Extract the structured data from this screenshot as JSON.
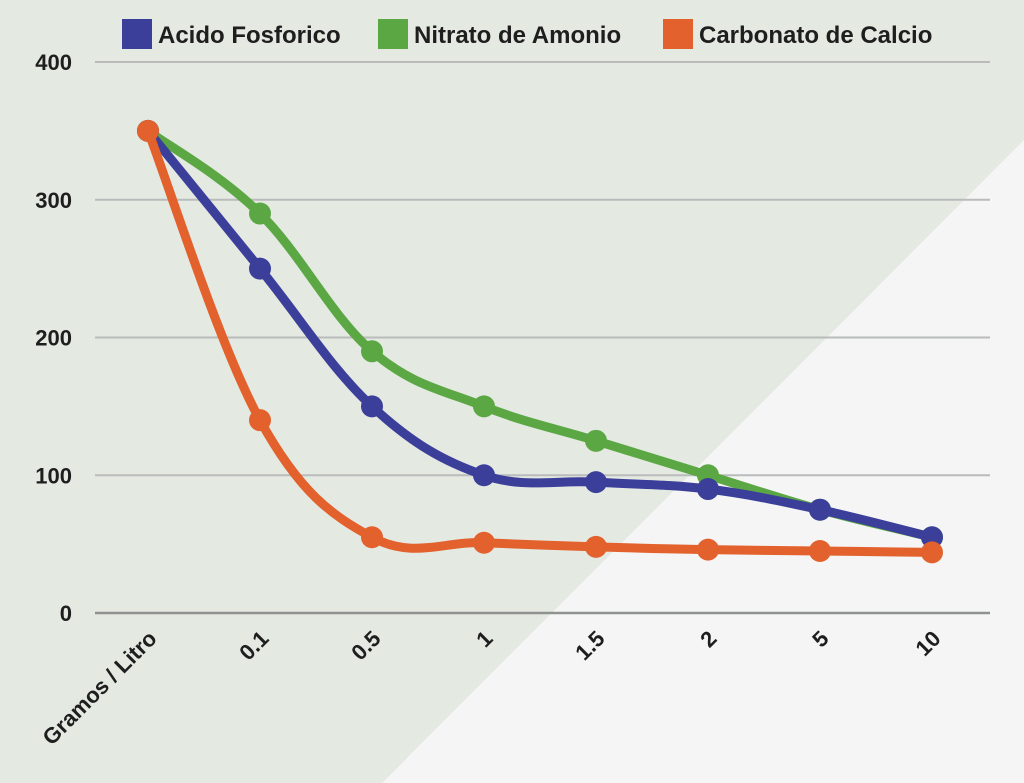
{
  "chart_data": {
    "type": "line",
    "title": "",
    "xlabel": "",
    "ylabel": "",
    "categories": [
      "Gramos / Litro",
      "0.1",
      "0.5",
      "1",
      "1.5",
      "2",
      "5",
      "10"
    ],
    "ylim": [
      0,
      400
    ],
    "yticks": [
      0,
      100,
      200,
      300,
      400
    ],
    "grid": true,
    "legend_position": "top",
    "smooth": true,
    "series": [
      {
        "name": "Acido Fosforico",
        "color": "#3b3f9a",
        "values": [
          350,
          250,
          150,
          100,
          95,
          90,
          75,
          55
        ]
      },
      {
        "name": "Nitrato de Amonio",
        "color": "#5aa743",
        "values": [
          350,
          290,
          190,
          150,
          125,
          100,
          75,
          55
        ]
      },
      {
        "name": "Carbonato de Calcio",
        "color": "#e2612c",
        "values": [
          350,
          140,
          55,
          51,
          48,
          46,
          45,
          44
        ]
      }
    ],
    "colors": {
      "background_upper": "#e4e9e2",
      "background_lower": "#f4f5f4",
      "grid": "#b9bcbb",
      "axis": "#8f9291"
    }
  }
}
